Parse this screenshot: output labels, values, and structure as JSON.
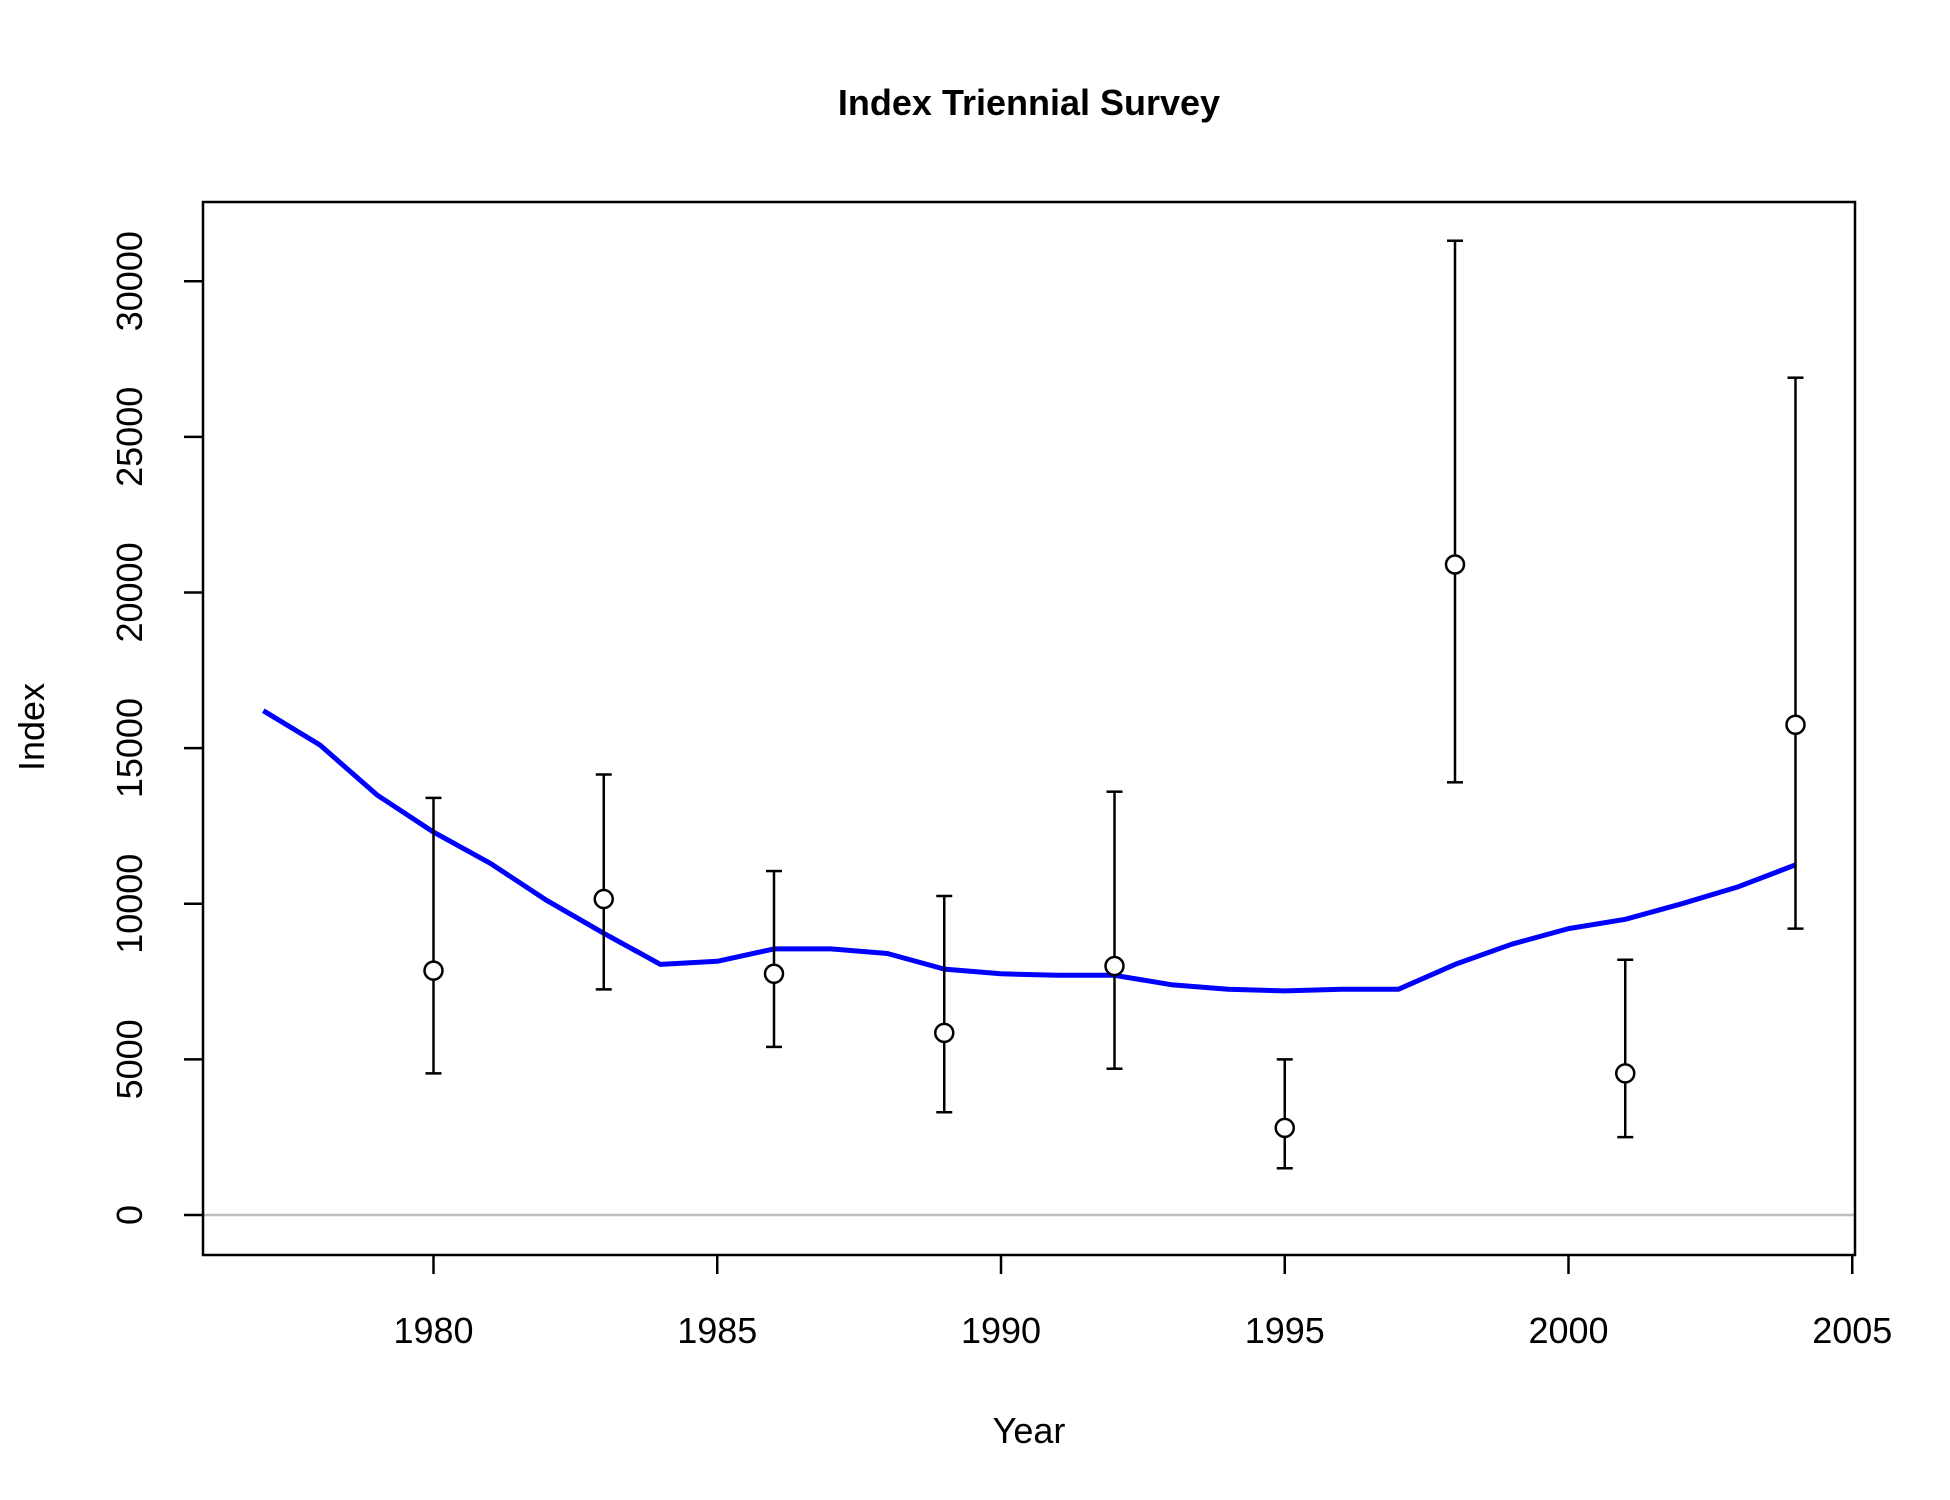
{
  "chart_data": {
    "type": "line",
    "title": "Index Triennial Survey",
    "xlabel": "Year",
    "ylabel": "Index",
    "xlim": [
      1977,
      2004
    ],
    "ylim": [
      0,
      31300
    ],
    "x_ticks": [
      "1980",
      "1985",
      "1990",
      "1995",
      "2000",
      "2005"
    ],
    "y_ticks": [
      "0",
      "5000",
      "10000",
      "15000",
      "20000",
      "25000",
      "30000"
    ],
    "grid": false,
    "colors": {
      "expected": "#0000ff",
      "observed": "#000000",
      "zero_line": "#bebebe"
    },
    "series": [
      {
        "style": "line",
        "x": [
          1977,
          1978,
          1979,
          1980,
          1981,
          1982,
          1983,
          1984,
          1985,
          1986,
          1987,
          1988,
          1989,
          1990,
          1991,
          1992,
          1993,
          1994,
          1995,
          1996,
          1997,
          1998,
          1999,
          2000,
          2001,
          2002,
          2003,
          2004
        ],
        "y": [
          16200,
          15100,
          13500,
          12300,
          11300,
          10100,
          9050,
          8050,
          8150,
          8550,
          8550,
          8400,
          7900,
          7750,
          7700,
          7700,
          7400,
          7250,
          7200,
          7250,
          7250,
          8050,
          8700,
          9200,
          9500,
          10000,
          10550,
          11250
        ]
      },
      {
        "style": "points_with_error_bars",
        "x": [
          1980,
          1983,
          1986,
          1989,
          1992,
          1995,
          1998,
          2001,
          2004
        ],
        "y": [
          7850,
          10150,
          7750,
          5850,
          8000,
          2800,
          20900,
          4550,
          15750
        ],
        "lower": [
          4550,
          7250,
          5400,
          3300,
          4700,
          1500,
          13900,
          2500,
          9200
        ],
        "upper": [
          13400,
          14150,
          11050,
          10250,
          13600,
          5000,
          31300,
          8200,
          26900
        ]
      }
    ]
  }
}
